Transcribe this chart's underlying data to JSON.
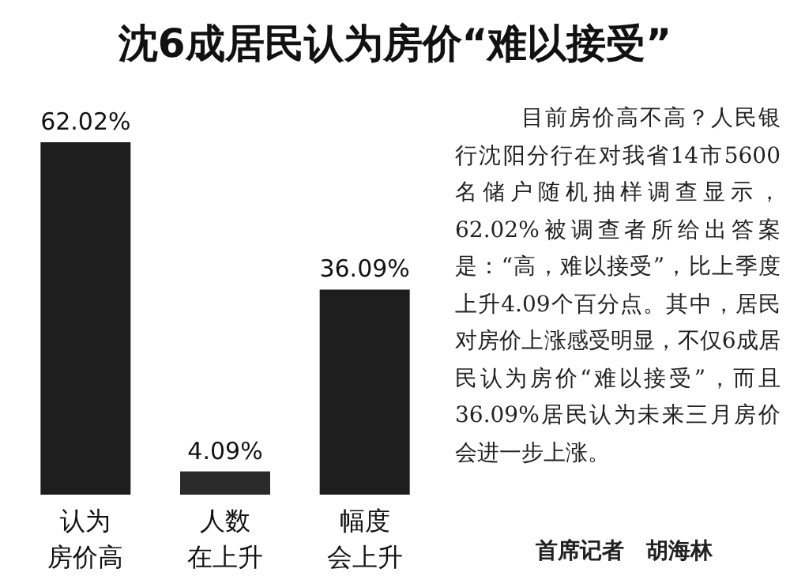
{
  "chart_data": {
    "type": "bar",
    "title": "沈6成居民认为房价“难以接受”",
    "categories": [
      "认为房价高",
      "人数在上升",
      "幅度会上升"
    ],
    "values": [
      62.02,
      4.09,
      36.09
    ],
    "value_labels": [
      "62.02%",
      "4.09%",
      "36.09%"
    ],
    "colors": [
      "#1e1e1e",
      "#2a2a2a",
      "#1e1e1e"
    ],
    "annotations": [
      "目前房价高不高？人民银行沈阳分行在对我省14市5600名储户随机抽样调查显示，62.02%被调查者所给出答案是：“高，难以接受”，比上季度上升4.09个百分点。其中，居民对房价上涨感受明显，不仅6成居民认为房价“难以接受”，而且36.09%居民认为未来三月房价会进一步上涨。",
      "首席记者　胡海林"
    ]
  }
}
